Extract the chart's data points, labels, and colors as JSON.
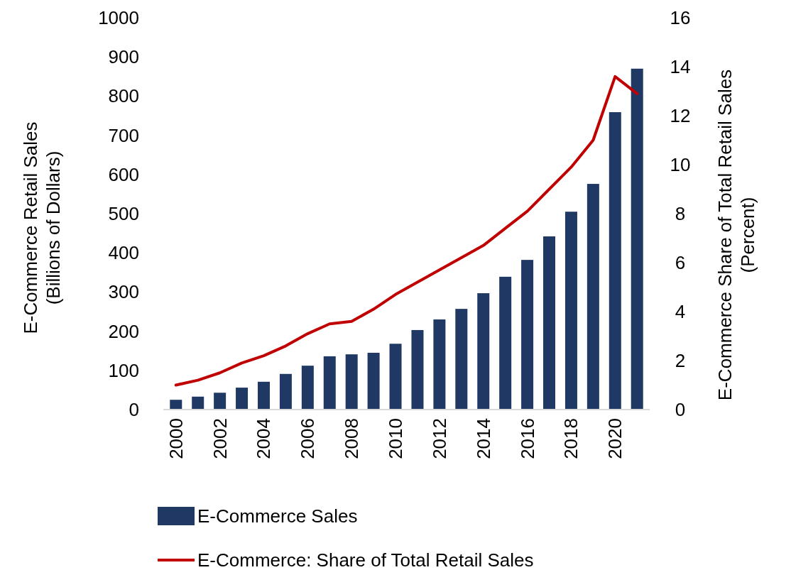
{
  "chart_data": {
    "type": "bar",
    "ylabel": "E-Commerce Retail Sales\n(Billions of Dollars)",
    "y2label": "E-Commerce Share of Total Retail Sales\n(Percent)",
    "categories": [
      "2000",
      null,
      "2002",
      null,
      "2004",
      null,
      "2006",
      null,
      "2008",
      null,
      "2010",
      null,
      "2012",
      null,
      "2014",
      null,
      "2016",
      null,
      "2018",
      null,
      "2020",
      null
    ],
    "series": [
      {
        "name": "E-Commerce Sales",
        "color": "#1f3864",
        "values": [
          25,
          33,
          43,
          56,
          71,
          91,
          112,
          136,
          141,
          145,
          168,
          203,
          230,
          257,
          297,
          339,
          382,
          442,
          505,
          576,
          759,
          870
        ]
      },
      {
        "name": "E-Commerce: Share of Total Retail Sales",
        "type": "line",
        "axis": "y2",
        "color": "#c00000",
        "values": [
          1.0,
          1.2,
          1.5,
          1.9,
          2.2,
          2.6,
          3.1,
          3.5,
          3.6,
          4.1,
          4.7,
          5.2,
          5.7,
          6.2,
          6.7,
          7.4,
          8.1,
          9.0,
          9.9,
          11.0,
          13.6,
          12.9
        ]
      }
    ],
    "ylim": [
      0,
      1000
    ],
    "yticks": [
      0,
      100,
      200,
      300,
      400,
      500,
      600,
      700,
      800,
      900,
      1000
    ],
    "y2lim": [
      0,
      16
    ],
    "y2ticks": [
      0,
      2,
      4,
      6,
      8,
      10,
      12,
      14,
      16
    ],
    "legend": "bottom",
    "grid": false,
    "marker": "none",
    "line_style": "solid"
  }
}
